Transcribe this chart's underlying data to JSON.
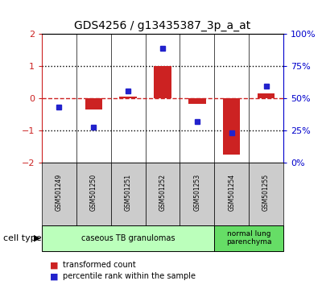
{
  "title": "GDS4256 / g13435387_3p_a_at",
  "samples": [
    "GSM501249",
    "GSM501250",
    "GSM501251",
    "GSM501252",
    "GSM501253",
    "GSM501254",
    "GSM501255"
  ],
  "red_bars": [
    0.0,
    -0.35,
    0.05,
    1.02,
    -0.18,
    -1.75,
    0.15
  ],
  "blue_dots": [
    -0.28,
    -0.9,
    0.22,
    1.55,
    -0.72,
    -1.08,
    0.38
  ],
  "ylim_left": [
    -2,
    2
  ],
  "ylim_right": [
    0,
    100
  ],
  "yticks_left": [
    -2,
    -1,
    0,
    1,
    2
  ],
  "yticks_right": [
    0,
    25,
    50,
    75,
    100
  ],
  "ytick_labels_right": [
    "0%",
    "25%",
    "50%",
    "75%",
    "100%"
  ],
  "group1_samples": [
    0,
    1,
    2,
    3,
    4
  ],
  "group1_label": "caseous TB granulomas",
  "group2_samples": [
    5,
    6
  ],
  "group2_label": "normal lung\nparenchyma",
  "cell_type_label": "cell type",
  "legend_red": "transformed count",
  "legend_blue": "percentile rank within the sample",
  "bar_width": 0.5,
  "bar_color": "#cc2222",
  "dot_color": "#2222cc",
  "group1_bg": "#bbffbb",
  "group2_bg": "#66dd66",
  "sample_bg": "#cccccc",
  "hline_color": "#cc2222",
  "dot_line_color": "#0000cc"
}
